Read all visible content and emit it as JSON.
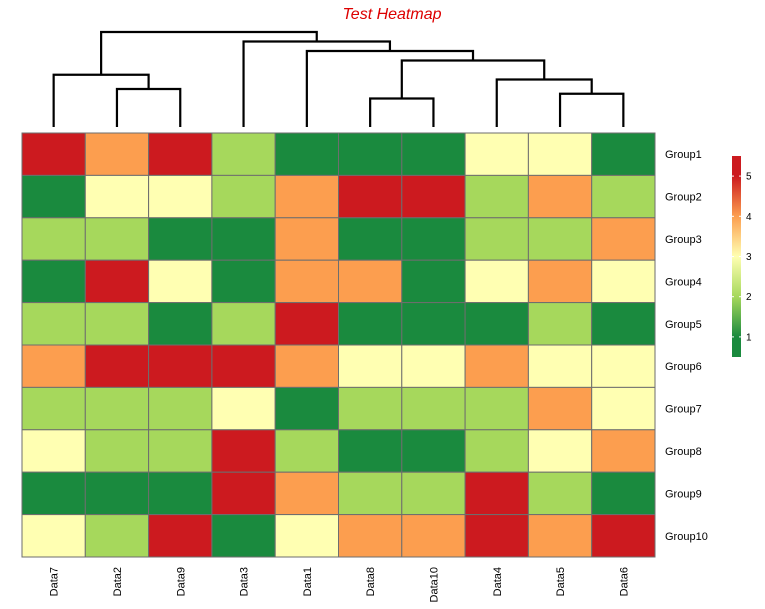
{
  "chart_data": {
    "type": "heatmap",
    "title": "Test Heatmap",
    "title_color": "#dd0000",
    "columns": [
      "Data7",
      "Data2",
      "Data9",
      "Data3",
      "Data1",
      "Data8",
      "Data10",
      "Data4",
      "Data5",
      "Data6"
    ],
    "rows": [
      "Group1",
      "Group2",
      "Group3",
      "Group4",
      "Group5",
      "Group6",
      "Group7",
      "Group8",
      "Group9",
      "Group10"
    ],
    "values": [
      [
        5.0,
        4.0,
        5.0,
        2.0,
        1.0,
        1.0,
        1.0,
        3.0,
        3.0,
        1.0
      ],
      [
        1.0,
        3.0,
        3.0,
        2.0,
        4.0,
        5.0,
        5.0,
        2.0,
        4.0,
        2.0
      ],
      [
        2.0,
        2.0,
        1.0,
        1.0,
        4.0,
        1.0,
        1.0,
        2.0,
        2.0,
        4.0
      ],
      [
        1.0,
        5.0,
        3.0,
        1.0,
        4.0,
        4.0,
        1.0,
        3.0,
        4.0,
        3.0
      ],
      [
        2.0,
        2.0,
        1.0,
        2.0,
        5.0,
        1.0,
        1.0,
        1.0,
        2.0,
        1.0
      ],
      [
        4.0,
        5.0,
        5.0,
        5.0,
        4.0,
        3.0,
        3.0,
        4.0,
        3.0,
        3.0
      ],
      [
        2.0,
        2.0,
        2.0,
        3.0,
        1.0,
        2.0,
        2.0,
        2.0,
        4.0,
        3.0
      ],
      [
        3.0,
        2.0,
        2.0,
        5.0,
        2.0,
        1.0,
        1.0,
        2.0,
        3.0,
        4.0
      ],
      [
        1.0,
        1.0,
        1.0,
        5.0,
        4.0,
        2.0,
        2.0,
        5.0,
        2.0,
        1.0
      ],
      [
        3.0,
        2.0,
        5.0,
        1.0,
        3.0,
        4.0,
        4.0,
        5.0,
        4.0,
        5.0
      ]
    ],
    "color_scale": {
      "stops": [
        {
          "value": 1,
          "color": "#1a8a3e"
        },
        {
          "value": 2,
          "color": "#a6d85c"
        },
        {
          "value": 3,
          "color": "#ffffb2"
        },
        {
          "value": 4,
          "color": "#fc9e4f"
        },
        {
          "value": 5,
          "color": "#cc1a1f"
        }
      ],
      "legend_ticks": [
        1,
        2,
        3,
        4,
        5
      ],
      "legend_range": [
        0.5,
        5.5
      ]
    },
    "column_dendrogram": [
      {
        "left": 1,
        "right": 2,
        "height": 0.4
      },
      {
        "left": 0,
        "right": -1,
        "height": 0.55
      },
      {
        "left": 5,
        "right": 6,
        "height": 0.3
      },
      {
        "left": 8,
        "right": 9,
        "height": 0.35
      },
      {
        "left": 7,
        "right": -4,
        "height": 0.5
      },
      {
        "left": -3,
        "right": -5,
        "height": 0.7
      },
      {
        "left": 4,
        "right": -6,
        "height": 0.8
      },
      {
        "left": 3,
        "right": -7,
        "height": 0.9
      },
      {
        "left": -2,
        "right": -8,
        "height": 1.0
      }
    ]
  }
}
